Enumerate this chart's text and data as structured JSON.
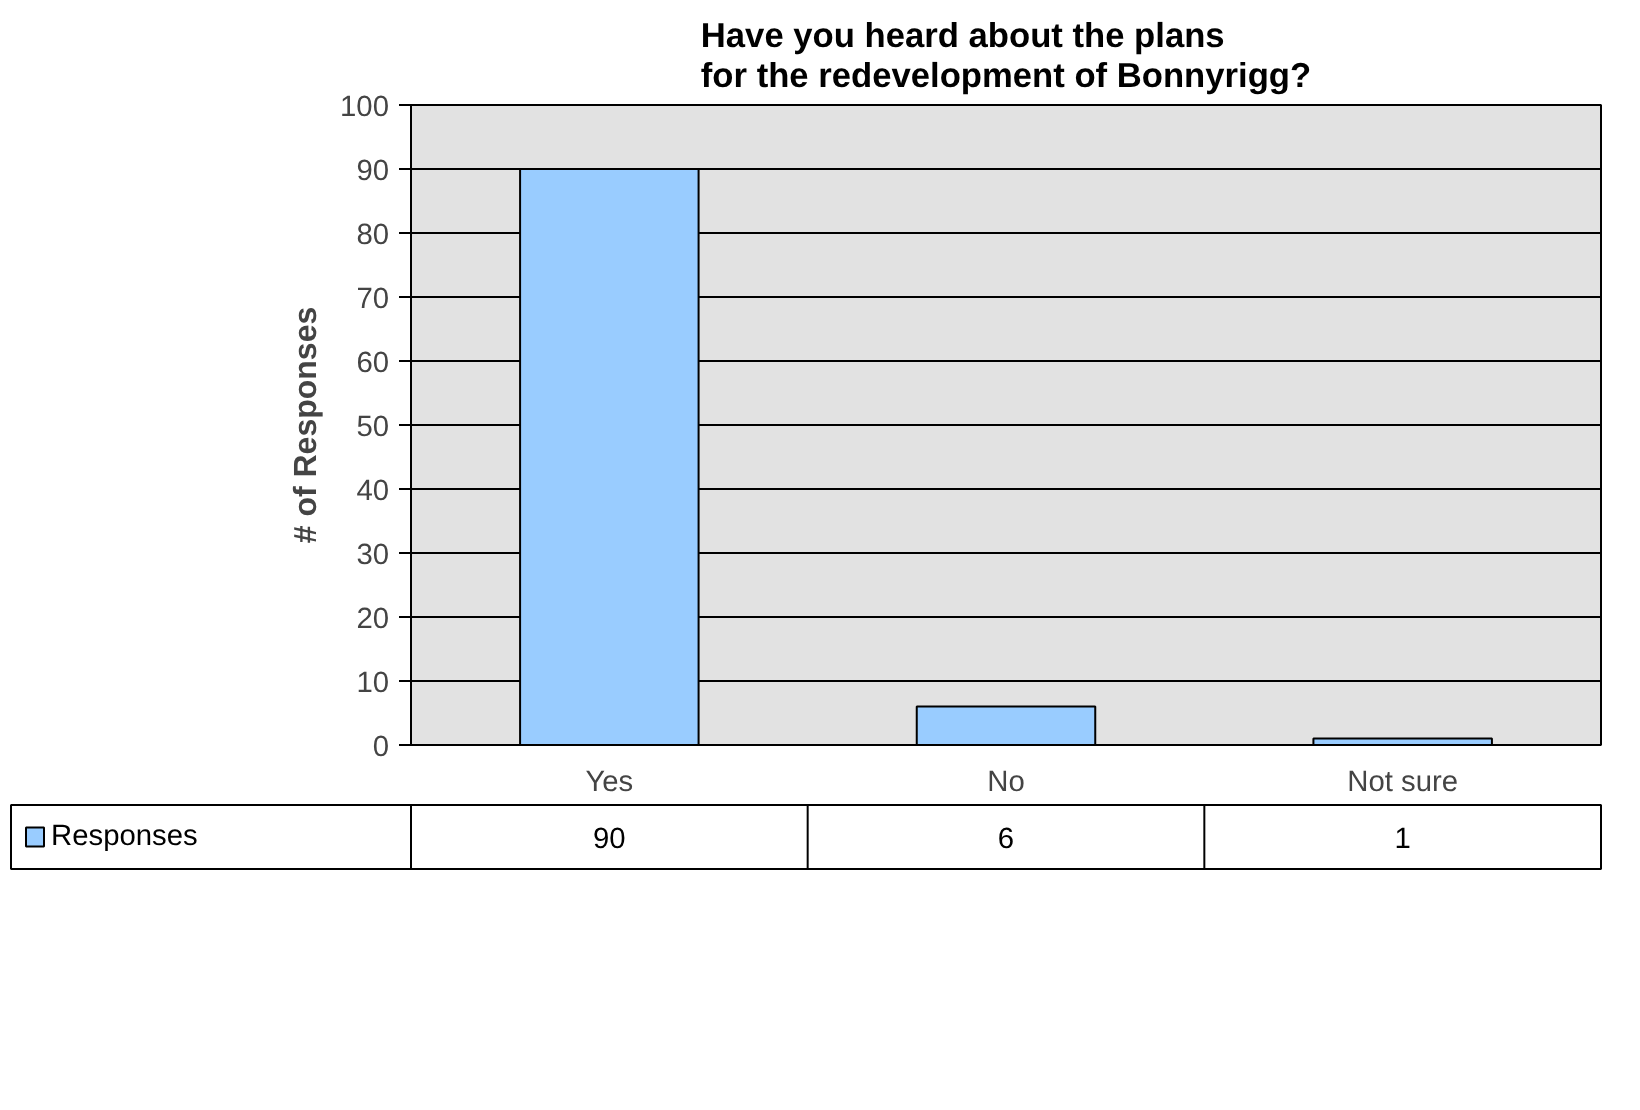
{
  "chart_data": {
    "type": "bar",
    "title": "Have you heard about the plans\nfor the redevelopment of Bonnyrigg?",
    "ylabel": "# of Responses",
    "categories": [
      "Yes",
      "No",
      "Not sure"
    ],
    "series": [
      {
        "name": "Responses",
        "color": "#99ccff",
        "values": [
          90,
          6,
          1
        ]
      }
    ],
    "ylim": [
      0,
      100
    ],
    "yticks": [
      0,
      10,
      20,
      30,
      40,
      50,
      60,
      70,
      80,
      90,
      100
    ],
    "grid": "y",
    "data_labels": true
  }
}
